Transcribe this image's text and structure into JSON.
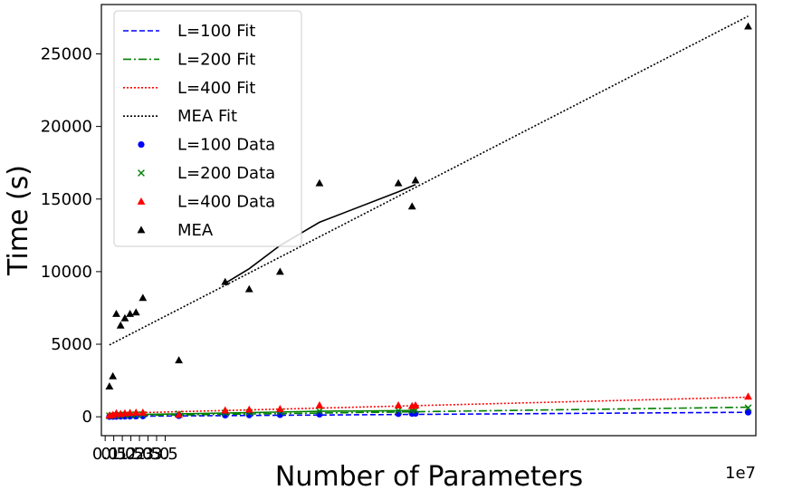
{
  "chart_data": {
    "type": "scatter",
    "xlabel": "Number of Parameters",
    "ylabel": "Time (s)",
    "x_offset_label": "1e7",
    "x_scale": 10000000,
    "xlim": [
      -0.22,
      37.95
    ],
    "ylim": [
      -1300,
      28400
    ],
    "xticks": [
      {
        "v": 0.0,
        "label": "0.0"
      },
      {
        "v": 0.5,
        "label": "0.5"
      },
      {
        "v": 1.0,
        "label": "1.0"
      },
      {
        "v": 1.5,
        "label": "1.5"
      },
      {
        "v": 2.0,
        "label": "2.0"
      },
      {
        "v": 2.5,
        "label": "2.5"
      },
      {
        "v": 3.0,
        "label": "3.0"
      },
      {
        "v": 3.5,
        "label": "3.5"
      }
    ],
    "yticks": [
      {
        "v": 0,
        "label": "0"
      },
      {
        "v": 5000,
        "label": "5000"
      },
      {
        "v": 10000,
        "label": "10000"
      },
      {
        "v": 15000,
        "label": "15000"
      },
      {
        "v": 20000,
        "label": "20000"
      },
      {
        "v": 25000,
        "label": "25000"
      }
    ],
    "legend_position": "top-left",
    "legend": [
      {
        "label": "L=100 Fit",
        "kind": "line",
        "color": "#0000ff",
        "dash": "6,3"
      },
      {
        "label": "L=200 Fit",
        "kind": "line",
        "color": "#008000",
        "dash": "9,3,2,3"
      },
      {
        "label": "L=400 Fit",
        "kind": "line",
        "color": "#ff0000",
        "dash": "2,2"
      },
      {
        "label": "MEA Fit",
        "kind": "line",
        "color": "#000000",
        "dash": "2,2"
      },
      {
        "label": "L=100 Data",
        "kind": "circle",
        "color": "#0000ff"
      },
      {
        "label": "L=200 Data",
        "kind": "x",
        "color": "#008000"
      },
      {
        "label": "L=400 Data",
        "kind": "triangle",
        "color": "#ff0000"
      },
      {
        "label": "MEA",
        "kind": "triangle",
        "color": "#000000"
      }
    ],
    "fits": [
      {
        "name": "L=100 Fit",
        "color": "#0000ff",
        "dash": "6,3",
        "x": [
          0.25,
          37.5
        ],
        "y": [
          30,
          310
        ]
      },
      {
        "name": "L=200 Fit",
        "color": "#008000",
        "dash": "9,3,2,3",
        "x": [
          0.25,
          37.5
        ],
        "y": [
          60,
          660
        ]
      },
      {
        "name": "L=400 Fit",
        "color": "#ff0000",
        "dash": "2,2",
        "x": [
          0.25,
          37.5
        ],
        "y": [
          230,
          1350
        ]
      },
      {
        "name": "MEA Fit",
        "color": "#000000",
        "dash": "2,2",
        "x": [
          0.25,
          37.5
        ],
        "y": [
          4950,
          27600
        ]
      }
    ],
    "connectors": [
      {
        "name": "L=200 Data path",
        "color": "#008000",
        "x": [
          0.25,
          0.45,
          0.65,
          0.9,
          1.15,
          1.45,
          1.8,
          2.2,
          4.3,
          7.0,
          8.4,
          10.2,
          12.5,
          17.1,
          17.9,
          18.1
        ],
        "y": [
          70,
          80,
          100,
          110,
          120,
          130,
          140,
          160,
          200,
          260,
          290,
          330,
          380,
          420,
          440,
          450
        ]
      },
      {
        "name": "MEA path",
        "color": "#000000",
        "x": [
          7.0,
          8.4,
          10.2,
          12.5,
          17.1,
          17.9,
          18.1
        ],
        "y": [
          9200,
          10200,
          11800,
          13400,
          15500,
          15900,
          16000
        ]
      }
    ],
    "series": [
      {
        "name": "L=100 Data",
        "marker": "circle",
        "color": "#0000ff",
        "x": [
          0.25,
          0.45,
          0.65,
          0.9,
          1.15,
          1.45,
          1.8,
          2.2,
          4.3,
          7.0,
          8.4,
          10.2,
          12.5,
          17.1,
          17.9,
          18.1,
          37.5
        ],
        "y": [
          10,
          15,
          20,
          25,
          30,
          35,
          40,
          50,
          70,
          110,
          120,
          140,
          170,
          210,
          220,
          230,
          310
        ]
      },
      {
        "name": "L=200 Data",
        "marker": "x",
        "color": "#008000",
        "x": [
          0.25,
          0.45,
          0.65,
          0.9,
          1.15,
          1.45,
          1.8,
          2.2,
          4.3,
          7.0,
          8.4,
          10.2,
          12.5,
          17.1,
          17.9,
          18.1,
          37.5
        ],
        "y": [
          70,
          80,
          100,
          110,
          120,
          130,
          140,
          160,
          200,
          260,
          290,
          330,
          380,
          420,
          440,
          450,
          620
        ]
      },
      {
        "name": "L=400 Data",
        "marker": "triangle",
        "color": "#ff0000",
        "x": [
          0.25,
          0.45,
          0.65,
          0.9,
          1.15,
          1.45,
          1.8,
          2.2,
          4.3,
          7.0,
          8.4,
          10.2,
          12.5,
          17.1,
          17.9,
          18.1,
          37.5
        ],
        "y": [
          100,
          130,
          250,
          200,
          250,
          280,
          300,
          300,
          150,
          450,
          500,
          550,
          800,
          800,
          750,
          800,
          1400
        ]
      },
      {
        "name": "MEA",
        "marker": "triangle",
        "color": "#000000",
        "x": [
          0.25,
          0.45,
          0.65,
          0.9,
          1.15,
          1.45,
          1.8,
          2.2,
          4.3,
          7.0,
          8.4,
          10.2,
          12.5,
          17.1,
          17.9,
          18.1,
          37.5
        ],
        "y": [
          2100,
          2800,
          7100,
          6300,
          6800,
          7100,
          7200,
          8200,
          3900,
          9300,
          8800,
          10000,
          16100,
          16100,
          14500,
          16300,
          26900
        ]
      }
    ]
  }
}
